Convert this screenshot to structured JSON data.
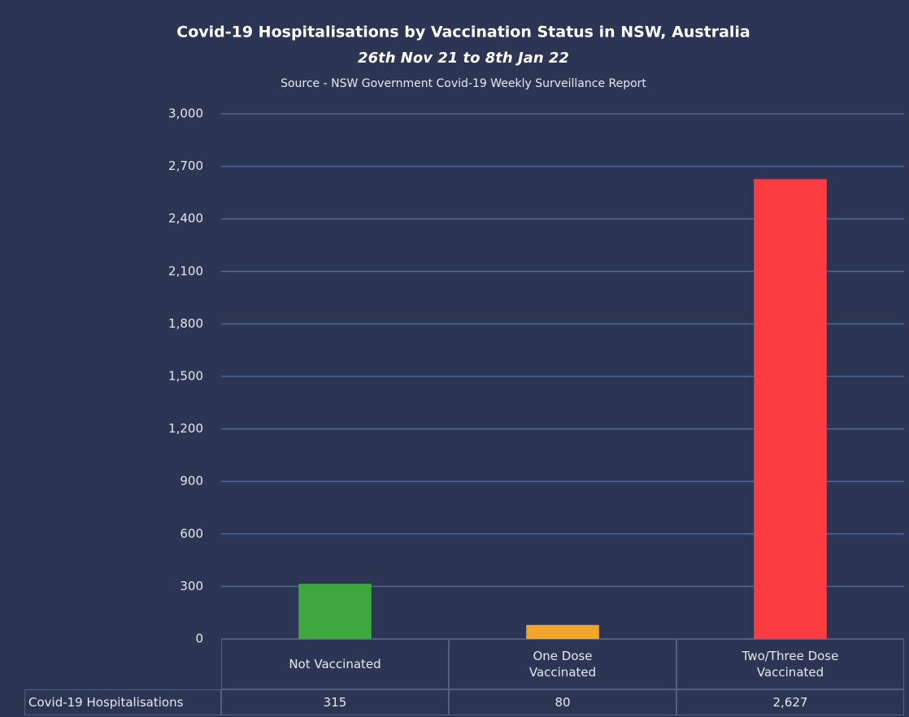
{
  "chart_data": {
    "type": "bar",
    "title": "Covid-19 Hospitalisations by Vaccination Status in NSW, Australia",
    "subtitle": "26th Nov 21 to 8th Jan 22",
    "source": "Source - NSW Government Covid-19 Weekly Surveillance Report",
    "categories": [
      "Not Vaccinated",
      "One Dose Vaccinated",
      "Two/Three Dose Vaccinated"
    ],
    "series": [
      {
        "name": "Covid-19 Hospitalisations",
        "colors": [
          "#3ea83e",
          "#f2a629",
          "#fb3c40"
        ],
        "values": [
          315,
          80,
          2627
        ],
        "value_labels": [
          "315",
          "80",
          "2,627"
        ]
      }
    ],
    "ylim": [
      0,
      3000
    ],
    "yticks": [
      0,
      300,
      600,
      900,
      {
        "value": 1200,
        "label": "1,200"
      },
      {
        "value": 1500,
        "label": "1,500"
      },
      {
        "value": 1800,
        "label": "1,800"
      },
      {
        "value": 2100,
        "label": "2,100"
      },
      {
        "value": 2400,
        "label": "2,400"
      },
      {
        "value": 2700,
        "label": "2,700"
      },
      {
        "value": 3000,
        "label": "3,000"
      }
    ],
    "grid": true
  }
}
